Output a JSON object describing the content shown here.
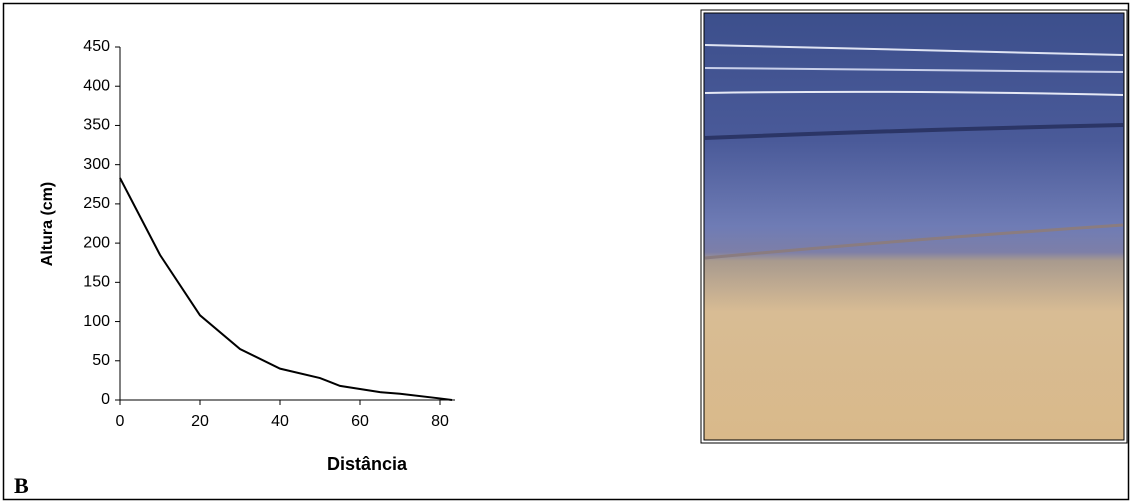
{
  "chart_data": {
    "type": "line",
    "x_label": "Distância",
    "y_label": "Altura (cm)",
    "annotation": "B",
    "x": [
      0,
      10,
      20,
      30,
      40,
      50,
      55,
      65,
      70,
      80,
      83
    ],
    "values": [
      283,
      185,
      108,
      65,
      40,
      28,
      18,
      10,
      8,
      2,
      0
    ],
    "color": "#000000",
    "xlim": [
      0,
      83
    ],
    "xticks": [
      0,
      20,
      40,
      60,
      80
    ],
    "ylim": [
      0,
      450
    ],
    "yticks": [
      0,
      50,
      100,
      150,
      200,
      250,
      300,
      350,
      400,
      450
    ],
    "grid": false
  }
}
